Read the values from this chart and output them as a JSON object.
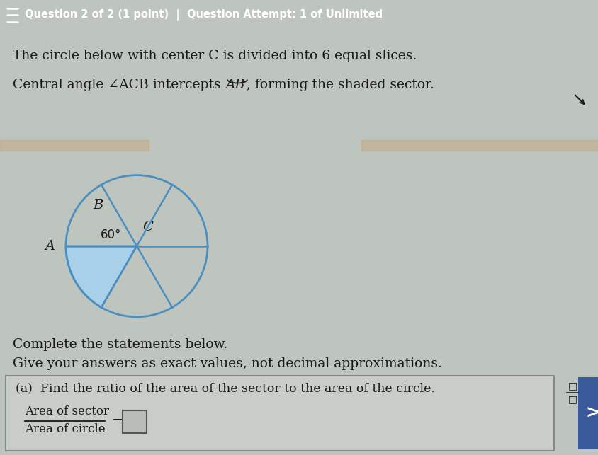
{
  "header_bg": "#2d6b5e",
  "header_text": "Question 2 of 2 (1 point)  |  Question Attempt: 1 of Unlimited",
  "header_fontsize": 10.5,
  "body_bg": "#bec5be",
  "question_line1": "The circle below with center C is divided into 6 equal slices.",
  "complete_line1": "Complete the statements below.",
  "complete_line2": "Give your answers as exact values, not decimal approximations.",
  "part_a_text": "(a)  Find the ratio of the area of the sector to the area of the circle.",
  "fraction_num": "Area of sector",
  "fraction_den": "Area of circle",
  "circle_color": "#4a8fc0",
  "shaded_color": "#a8d0e8",
  "angle_label": "60°",
  "label_A": "A",
  "label_B": "B",
  "label_C": "C",
  "text_color": "#1a1a1a",
  "title_color": "#ffffff",
  "right_button_bg": "#3a5a9c",
  "box_bg": "#c8cdc8",
  "fig_width": 8.45,
  "fig_height": 6.43,
  "dpi": 100
}
